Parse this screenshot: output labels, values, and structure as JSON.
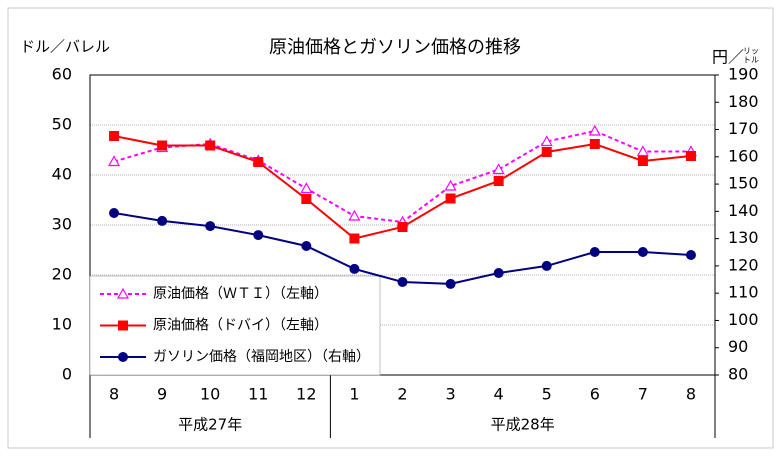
{
  "chart_data": {
    "type": "line",
    "title": "原油価格とガソリン価格の推移",
    "y_label": "ドル／バレル",
    "y2_label": {
      "main": "円／",
      "sub": [
        "リッ",
        "トル"
      ]
    },
    "categories": [
      "8",
      "9",
      "10",
      "11",
      "12",
      "1",
      "2",
      "3",
      "4",
      "5",
      "6",
      "7",
      "8"
    ],
    "x_groups": [
      "平成27年",
      "平成28年"
    ],
    "series": [
      {
        "name": "原油価格（ＷＴＩ）（左軸）",
        "color": "#ff00ff",
        "marker": "triangle",
        "dashed": true,
        "values": [
          42.7,
          45.5,
          46.2,
          42.9,
          37.3,
          31.8,
          30.6,
          37.8,
          41.1,
          46.7,
          48.8,
          44.7,
          44.7
        ]
      },
      {
        "name": "原油価格（ドバイ）（左軸）",
        "color": "#ff0000",
        "marker": "square",
        "dashed": false,
        "values": [
          47.8,
          45.9,
          45.9,
          42.6,
          35.2,
          27.3,
          29.6,
          35.3,
          38.8,
          44.6,
          46.2,
          42.8,
          43.8
        ]
      },
      {
        "name": "ガソリン価格（福岡地区）（右軸）",
        "color": "#000080",
        "marker": "circle",
        "dashed": false,
        "axis": "y2",
        "values": [
          139.4,
          136.5,
          134.6,
          131.3,
          127.3,
          118.9,
          114.1,
          113.4,
          117.4,
          120.0,
          125.1,
          125.1,
          124.0
        ]
      }
    ],
    "ylim": [
      0,
      60
    ],
    "yticks": [
      0,
      10,
      20,
      30,
      40,
      50,
      60
    ],
    "y2lim": [
      80,
      190
    ],
    "y2ticks": [
      80,
      90,
      100,
      110,
      120,
      130,
      140,
      150,
      160,
      170,
      180,
      190
    ],
    "grid": true,
    "legend": "lower-left"
  }
}
